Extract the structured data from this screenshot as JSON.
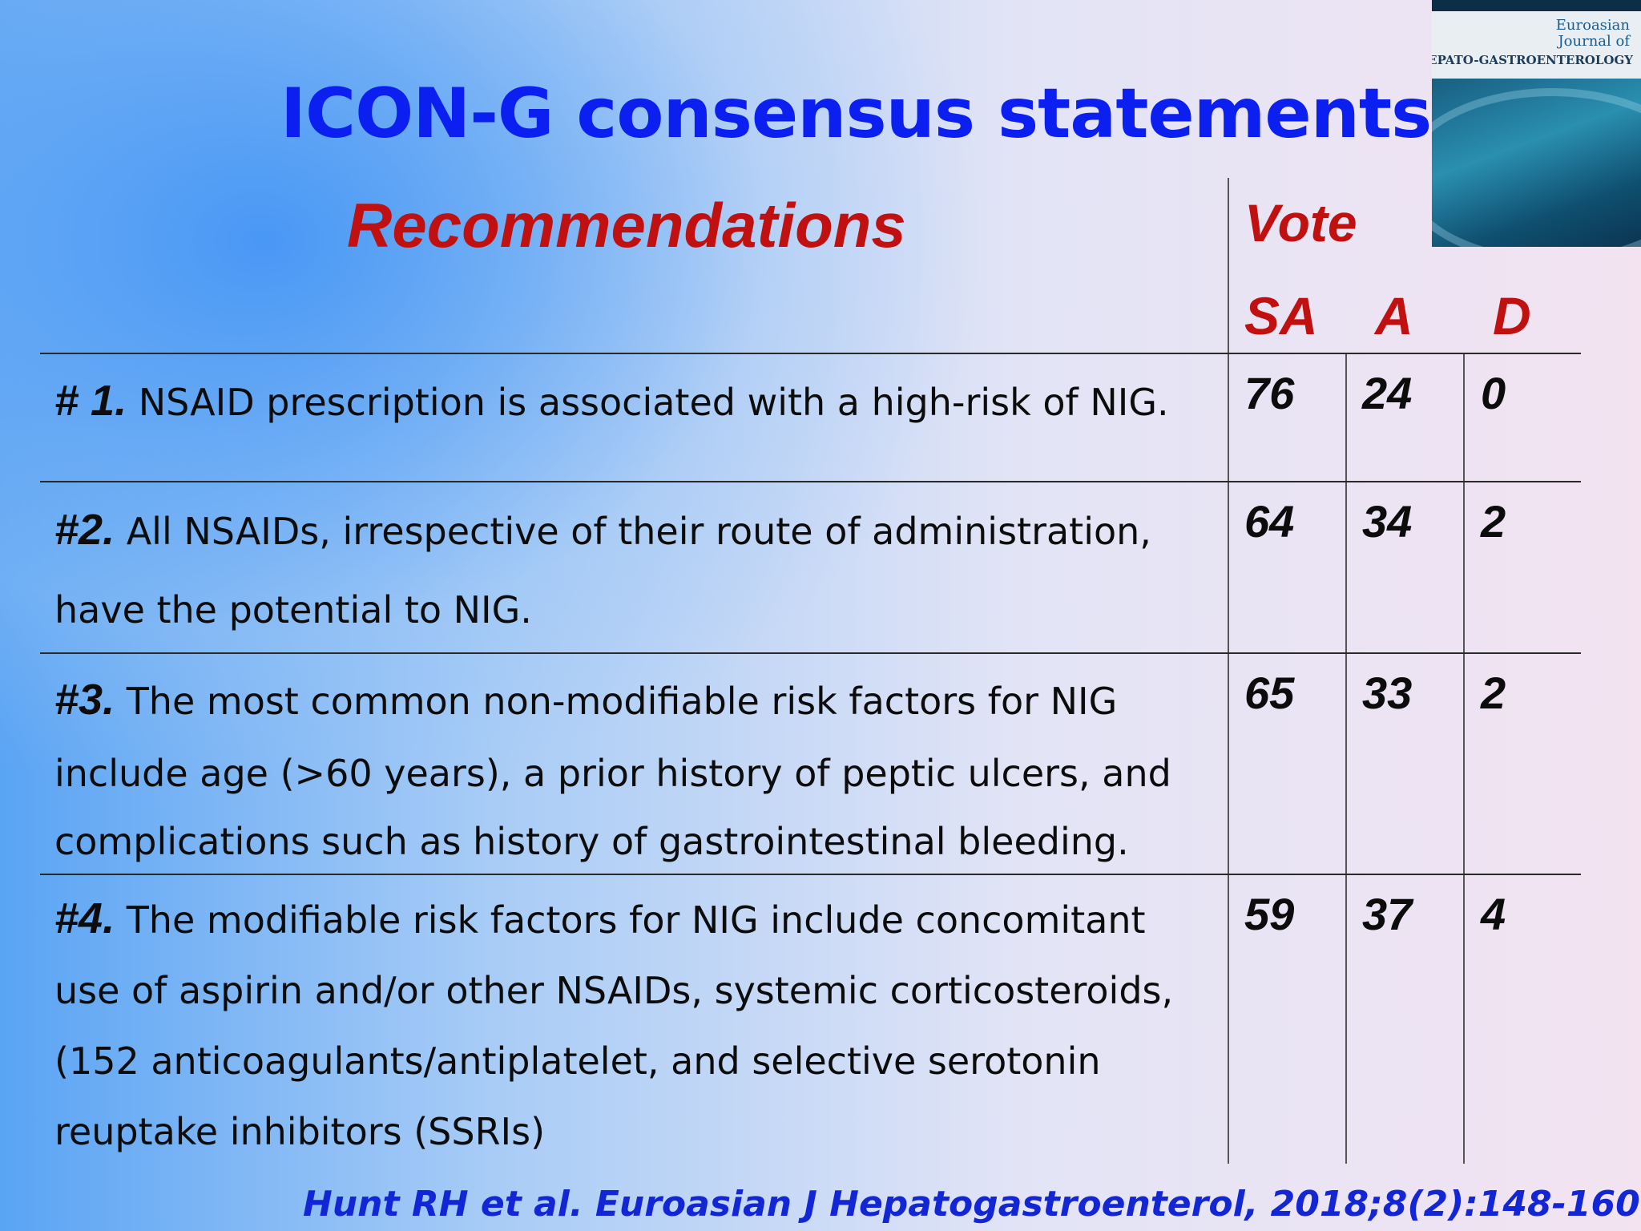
{
  "title": "ICON-G consensus statements:",
  "headers": {
    "recommendations": "Recommendations",
    "vote": "Vote",
    "sa": "SA",
    "a": "A",
    "d": "D"
  },
  "rows": [
    {
      "num": "# 1.",
      "lines": [
        "NSAID prescription is associated with a high-risk of NIG."
      ],
      "sa": "76",
      "a": "24",
      "d": "0"
    },
    {
      "num": "#2.",
      "lines": [
        "All NSAIDs, irrespective of their route of administration,",
        "have the potential to NIG."
      ],
      "sa": "64",
      "a": "34",
      "d": "2"
    },
    {
      "num": "#3.",
      "lines": [
        "The most common non-modifiable risk factors for NIG",
        "include age (>60 years), a prior history of peptic ulcers, and",
        "complications such as history of gastrointestinal bleeding."
      ],
      "sa": "65",
      "a": "33",
      "d": "2"
    },
    {
      "num": "#4.",
      "lines": [
        "The modifiable risk factors for NIG include concomitant",
        "use of aspirin and/or other NSAIDs, systemic corticosteroids,",
        "(152 anticoagulants/antiplatelet, and selective serotonin",
        "reuptake inhibitors (SSRIs)"
      ],
      "sa": "59",
      "a": "37",
      "d": "4"
    }
  ],
  "journal_cover": {
    "line1": "Euroasian",
    "line2": "Journal of",
    "line3": "HEPATO-GASTROENTEROLOGY"
  },
  "citation": "Hunt RH et al. Euroasian J Hepatogastroenterol, 2018;8(2):148-160",
  "colors": {
    "title": "#0a1ff0",
    "headers": "#c01010",
    "citation": "#1326d6"
  }
}
